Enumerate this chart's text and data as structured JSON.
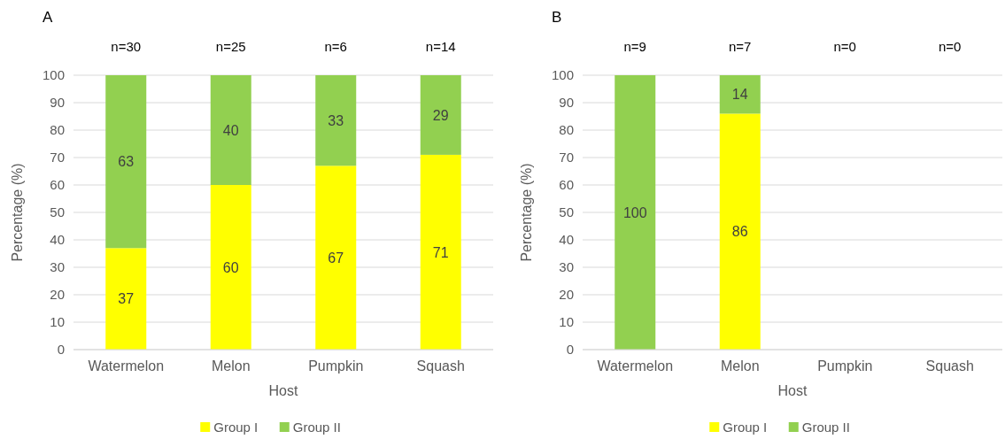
{
  "chart_data": [
    {
      "type": "bar",
      "title": "A",
      "xlabel": "Host",
      "ylabel": "Percentage (%)",
      "categories": [
        "Watermelon",
        "Melon",
        "Pumpkin",
        "Squash"
      ],
      "stacked": true,
      "ylim": [
        0,
        100
      ],
      "yticks": [
        0,
        10,
        20,
        30,
        40,
        50,
        60,
        70,
        80,
        90,
        100
      ],
      "grid": "y",
      "legend": "bottom",
      "series": [
        {
          "name": "Group I",
          "color": "#ffff00",
          "values": [
            37,
            60,
            67,
            71
          ],
          "value_labels": [
            "37",
            "60",
            "67",
            "71"
          ]
        },
        {
          "name": "Group II",
          "color": "#92d050",
          "values": [
            63,
            40,
            33,
            29
          ],
          "value_labels": [
            "63",
            "40",
            "33",
            "29"
          ]
        }
      ],
      "annotations": [
        "n=30",
        "n=25",
        "n=6",
        "n=14"
      ]
    },
    {
      "type": "bar",
      "title": "B",
      "xlabel": "Host",
      "ylabel": "Percentage (%)",
      "categories": [
        "Watermelon",
        "Melon",
        "Pumpkin",
        "Squash"
      ],
      "stacked": true,
      "ylim": [
        0,
        100
      ],
      "yticks": [
        0,
        10,
        20,
        30,
        40,
        50,
        60,
        70,
        80,
        90,
        100
      ],
      "grid": "y",
      "legend": "bottom",
      "series": [
        {
          "name": "Group I",
          "color": "#ffff00",
          "values": [
            0,
            86,
            null,
            null
          ],
          "value_labels": [
            null,
            "86",
            null,
            null
          ]
        },
        {
          "name": "Group II",
          "color": "#92d050",
          "values": [
            100,
            14,
            null,
            null
          ],
          "value_labels": [
            "100",
            "14",
            null,
            null
          ]
        }
      ],
      "annotations": [
        "n=9",
        "n=7",
        "n=0",
        "n=0"
      ]
    }
  ]
}
